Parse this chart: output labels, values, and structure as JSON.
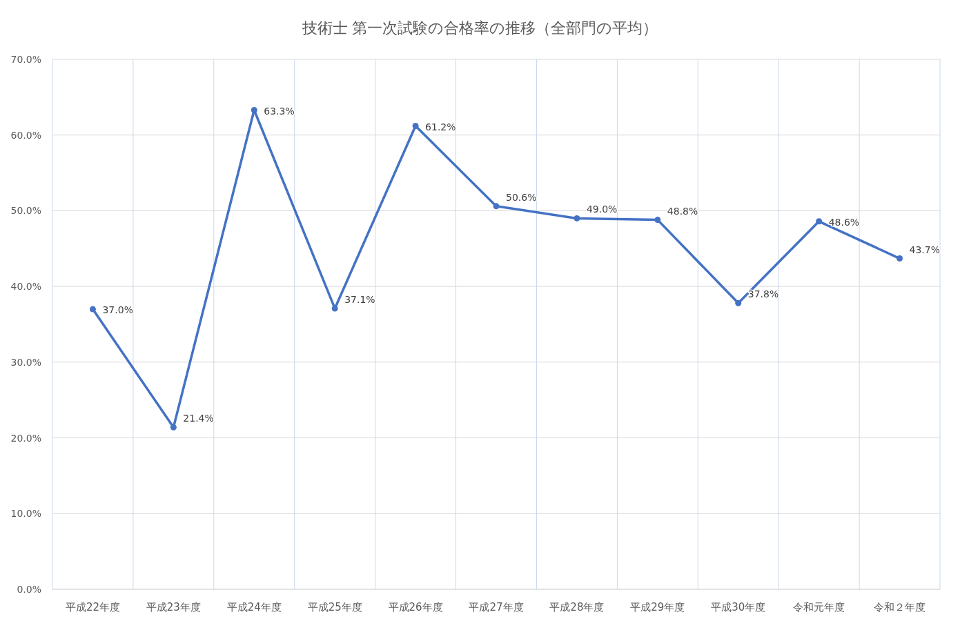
{
  "chart_data": {
    "type": "line",
    "title": "技術士 第一次試験の合格率の推移（全部門の平均）",
    "categories": [
      "平成22年度",
      "平成23年度",
      "平成24年度",
      "平成25年度",
      "平成26年度",
      "平成27年度",
      "平成28年度",
      "平成29年度",
      "平成30年度",
      "令和元年度",
      "令和２年度"
    ],
    "series": [
      {
        "color": "#4472c4",
        "values": [
          37.0,
          21.4,
          63.3,
          37.1,
          61.2,
          50.6,
          49.0,
          48.8,
          37.8,
          48.6,
          43.7
        ],
        "value_labels": [
          "37.0%",
          "21.4%",
          "63.3%",
          "37.1%",
          "61.2%",
          "50.6%",
          "49.0%",
          "48.8%",
          "37.8%",
          "48.6%",
          "43.7%"
        ]
      }
    ],
    "ylim": [
      0,
      70
    ],
    "yticks": [
      {
        "value": 0,
        "label": "0.0%"
      },
      {
        "value": 10,
        "label": "10.0%"
      },
      {
        "value": 20,
        "label": "20.0%"
      },
      {
        "value": 30,
        "label": "30.0%"
      },
      {
        "value": 40,
        "label": "40.0%"
      },
      {
        "value": 50,
        "label": "50.0%"
      },
      {
        "value": 60,
        "label": "60.0%"
      },
      {
        "value": 70,
        "label": "70.0%"
      }
    ],
    "grid": true,
    "marker": "circle",
    "line_style": "solid"
  }
}
